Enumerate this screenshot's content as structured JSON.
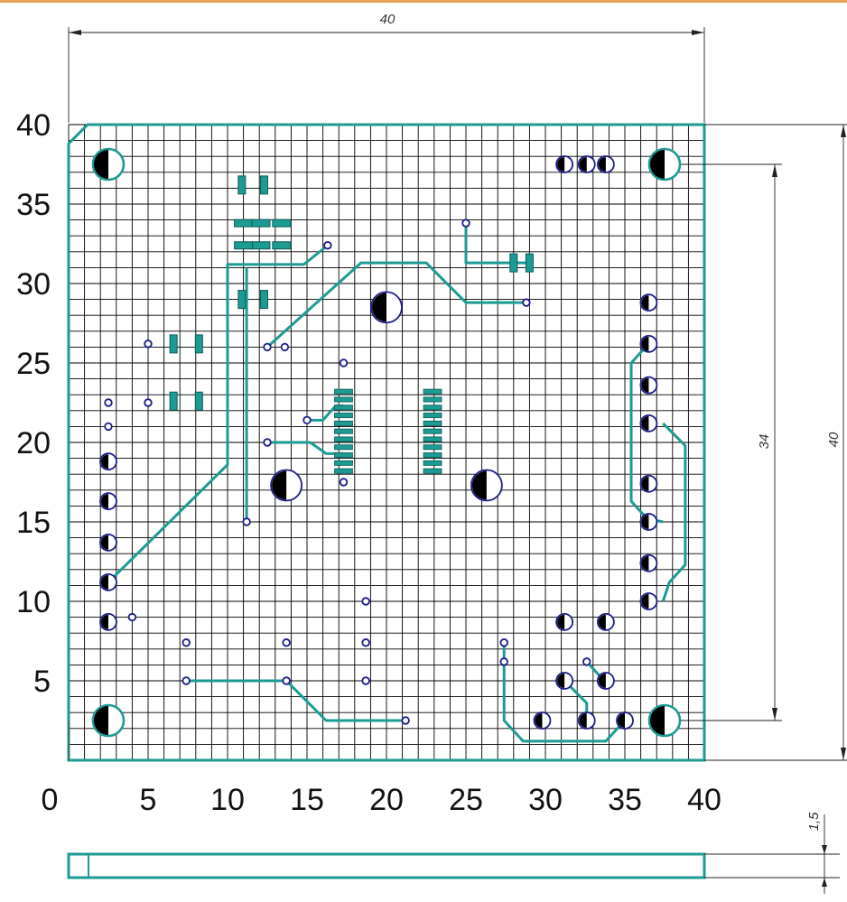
{
  "board": {
    "width_mm": 40,
    "height_mm": 40,
    "thickness_mm": 1.5,
    "outline_color": "#1c9a94",
    "grid_color": "#000000",
    "pad_color": "#1c1c8a"
  },
  "axes": {
    "x_ticks": [
      "0",
      "5",
      "10",
      "15",
      "20",
      "25",
      "30",
      "35",
      "40"
    ],
    "y_ticks": [
      "5",
      "10",
      "15",
      "20",
      "25",
      "30",
      "35",
      "40"
    ]
  },
  "dimensions": {
    "top_width": "40",
    "right_height": "40",
    "hole_spacing": "34",
    "thickness": "1,5"
  },
  "traces": [
    [
      [
        2.5,
        11.2
      ],
      [
        10,
        18.6
      ],
      [
        10,
        31.2
      ],
      [
        14.8,
        31.2
      ],
      [
        16.3,
        32.4
      ]
    ],
    [
      [
        12.5,
        26
      ],
      [
        18.4,
        31.3
      ],
      [
        22.5,
        31.3
      ],
      [
        25,
        28.8
      ],
      [
        28.8,
        28.8
      ]
    ],
    [
      [
        25,
        33.8
      ],
      [
        25,
        31.3
      ],
      [
        29,
        31.3
      ]
    ],
    [
      [
        12.5,
        20
      ],
      [
        15.2,
        20
      ],
      [
        16.2,
        19.3
      ],
      [
        17.3,
        19.3
      ]
    ],
    [
      [
        15,
        21.4
      ],
      [
        16,
        21.4
      ],
      [
        16.8,
        22.3
      ],
      [
        17.3,
        22.3
      ]
    ],
    [
      [
        11.2,
        15
      ],
      [
        11.2,
        31
      ]
    ],
    [
      [
        7.4,
        5
      ],
      [
        13.7,
        5
      ],
      [
        16.2,
        2.5
      ],
      [
        21.2,
        2.5
      ]
    ],
    [
      [
        27.4,
        7.4
      ],
      [
        27.4,
        2.5
      ],
      [
        28.6,
        1.2
      ],
      [
        33.8,
        1.2
      ],
      [
        34.9,
        2.4
      ]
    ],
    [
      [
        31.2,
        5
      ],
      [
        32.6,
        3.6
      ],
      [
        32.6,
        2.5
      ]
    ],
    [
      [
        32.6,
        6.2
      ],
      [
        33.7,
        5
      ]
    ],
    [
      [
        36.8,
        26.2
      ],
      [
        36.3,
        26
      ],
      [
        35.4,
        25
      ],
      [
        35.4,
        16.3
      ],
      [
        36.4,
        15.2
      ],
      [
        37.4,
        15
      ]
    ],
    [
      [
        37.4,
        21.2
      ],
      [
        38.8,
        19.8
      ],
      [
        38.8,
        12.3
      ],
      [
        37.8,
        11.2
      ],
      [
        37.4,
        10
      ]
    ]
  ],
  "smd_pads": [
    [
      10.9,
      36.2,
      "v"
    ],
    [
      12.3,
      36.2,
      "v"
    ],
    [
      11,
      33.8,
      "h"
    ],
    [
      12.1,
      32.4,
      "h"
    ],
    [
      13.4,
      33.8,
      "h"
    ],
    [
      13.4,
      32.4,
      "h"
    ],
    [
      11,
      32.4,
      "h"
    ],
    [
      12.1,
      33.8,
      "h"
    ],
    [
      10.9,
      29,
      "v"
    ],
    [
      12.3,
      29,
      "v"
    ],
    [
      6.6,
      26.2,
      "v"
    ],
    [
      8.2,
      26.2,
      "v"
    ],
    [
      6.6,
      22.6,
      "v"
    ],
    [
      8.2,
      22.6,
      "v"
    ],
    [
      28,
      31.3,
      "v"
    ],
    [
      29,
      31.3,
      "v"
    ]
  ],
  "chips": [
    {
      "x": 17.3,
      "y_top": 23.2,
      "y_bottom": 18.2,
      "count": 11
    },
    {
      "x": 22.9,
      "y_top": 23.2,
      "y_bottom": 18.2,
      "count": 11
    }
  ],
  "big_holes": [
    [
      2.5,
      37.5
    ],
    [
      37.5,
      37.5
    ],
    [
      2.5,
      2.5
    ],
    [
      37.5,
      2.5
    ],
    [
      20,
      28.5
    ],
    [
      13.7,
      17.3
    ],
    [
      26.3,
      17.3
    ]
  ],
  "half_pads": [
    [
      31.2,
      37.5
    ],
    [
      32.6,
      37.5
    ],
    [
      33.8,
      37.5
    ],
    [
      36.5,
      28.8
    ],
    [
      36.5,
      26.2
    ],
    [
      36.5,
      23.6
    ],
    [
      36.5,
      21.2
    ],
    [
      36.5,
      17.4
    ],
    [
      36.5,
      15
    ],
    [
      36.5,
      12.4
    ],
    [
      36.5,
      10
    ],
    [
      2.5,
      18.8
    ],
    [
      2.5,
      16.3
    ],
    [
      2.5,
      13.7
    ],
    [
      2.5,
      11.2
    ],
    [
      2.5,
      8.7
    ],
    [
      31.2,
      8.7
    ],
    [
      33.8,
      8.7
    ],
    [
      31.2,
      5
    ],
    [
      33.8,
      5
    ],
    [
      29.8,
      2.5
    ],
    [
      32.6,
      2.5
    ],
    [
      35,
      2.5
    ]
  ],
  "vias": [
    [
      2.5,
      22.5
    ],
    [
      2.5,
      21
    ],
    [
      5,
      26.2
    ],
    [
      5,
      22.5
    ],
    [
      4,
      9
    ],
    [
      12.5,
      26
    ],
    [
      13.6,
      26
    ],
    [
      16.3,
      32.4
    ],
    [
      17.3,
      25
    ],
    [
      15,
      21.4
    ],
    [
      12.5,
      20
    ],
    [
      17.3,
      17.5
    ],
    [
      11.2,
      15
    ],
    [
      25,
      33.8
    ],
    [
      28.8,
      28.8
    ],
    [
      7.4,
      7.4
    ],
    [
      13.7,
      7.4
    ],
    [
      18.7,
      10
    ],
    [
      18.7,
      7.4
    ],
    [
      18.7,
      5
    ],
    [
      7.4,
      5
    ],
    [
      13.7,
      5
    ],
    [
      21.2,
      2.5
    ],
    [
      27.4,
      7.4
    ],
    [
      27.4,
      6.2
    ],
    [
      32.6,
      6.2
    ]
  ]
}
